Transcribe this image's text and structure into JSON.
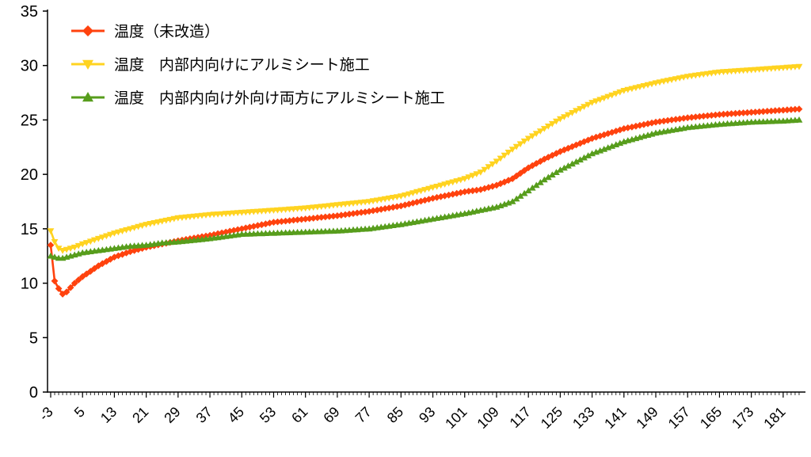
{
  "chart_data": {
    "type": "line",
    "title": "",
    "xlabel": "",
    "ylabel": "",
    "grid": false,
    "legend_position": "top-left",
    "ylim": [
      0,
      35
    ],
    "y_ticks": [
      0,
      5,
      10,
      15,
      20,
      25,
      30,
      35
    ],
    "xlim": [
      -3,
      186
    ],
    "x_tick_labels": [
      -3,
      5,
      13,
      21,
      29,
      37,
      45,
      53,
      61,
      69,
      77,
      85,
      93,
      101,
      109,
      117,
      125,
      133,
      141,
      149,
      157,
      165,
      173,
      181
    ],
    "x": [
      -3,
      -2,
      -1,
      0,
      1,
      2,
      3,
      5,
      9,
      13,
      17,
      21,
      25,
      29,
      37,
      45,
      53,
      61,
      69,
      77,
      85,
      93,
      101,
      105,
      109,
      113,
      117,
      121,
      125,
      133,
      141,
      149,
      157,
      165,
      173,
      181,
      185
    ],
    "series": [
      {
        "name": "温度（未改造）",
        "color": "#ff420e",
        "marker": "diamond",
        "values": [
          13.5,
          10.2,
          9.5,
          9.0,
          9.2,
          9.6,
          10.0,
          10.6,
          11.6,
          12.4,
          12.9,
          13.3,
          13.6,
          13.9,
          14.4,
          15.0,
          15.6,
          15.9,
          16.2,
          16.6,
          17.1,
          17.8,
          18.4,
          18.6,
          19.0,
          19.6,
          20.6,
          21.4,
          22.1,
          23.3,
          24.2,
          24.8,
          25.2,
          25.5,
          25.7,
          25.9,
          26.0
        ]
      },
      {
        "name": "温度　内部内向けにアルミシート施工",
        "color": "#ffd320",
        "marker": "triangle-down",
        "values": [
          14.8,
          13.8,
          13.2,
          13.0,
          13.1,
          13.2,
          13.3,
          13.6,
          14.1,
          14.6,
          15.0,
          15.4,
          15.7,
          16.0,
          16.3,
          16.5,
          16.7,
          16.9,
          17.2,
          17.5,
          18.0,
          18.8,
          19.6,
          20.2,
          21.2,
          22.3,
          23.3,
          24.2,
          25.1,
          26.6,
          27.7,
          28.4,
          29.0,
          29.4,
          29.6,
          29.8,
          29.9
        ]
      },
      {
        "name": "温度　内部内向け外向け両方にアルミシート施工",
        "color": "#579d1c",
        "marker": "triangle-up",
        "values": [
          12.5,
          12.4,
          12.3,
          12.3,
          12.4,
          12.5,
          12.6,
          12.8,
          13.0,
          13.2,
          13.4,
          13.5,
          13.7,
          13.8,
          14.1,
          14.5,
          14.6,
          14.7,
          14.8,
          15.0,
          15.4,
          15.9,
          16.4,
          16.7,
          17.0,
          17.5,
          18.5,
          19.5,
          20.4,
          21.9,
          23.0,
          23.8,
          24.3,
          24.6,
          24.8,
          24.9,
          25.0
        ]
      }
    ]
  }
}
